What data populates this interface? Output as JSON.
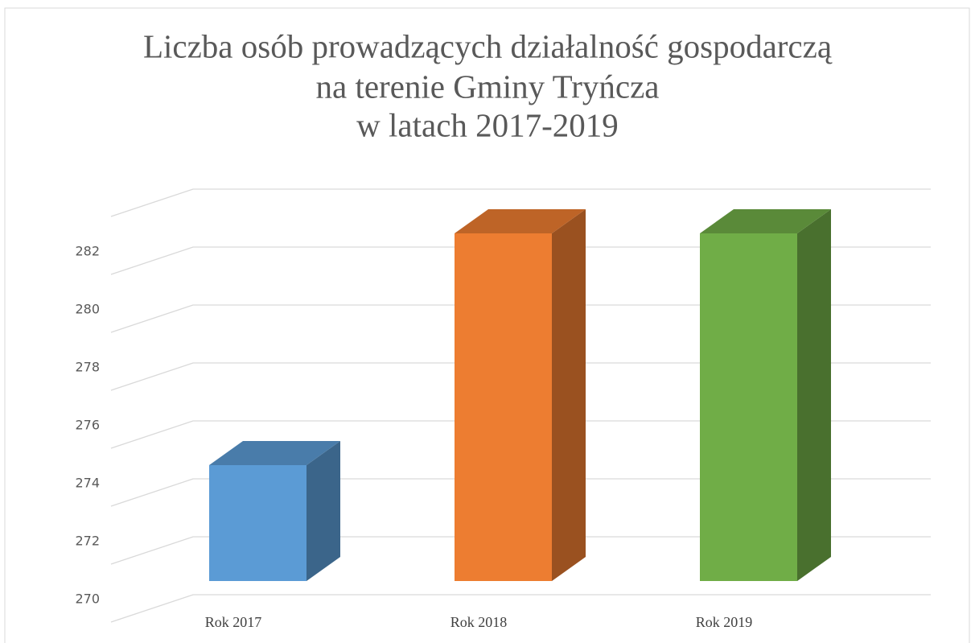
{
  "chart_data": {
    "type": "bar3d",
    "title": [
      "Liczba osób prowadzących działalność gospodarczą",
      "na terenie Gminy Tryńcza",
      "w latach 2017-2019"
    ],
    "categories": [
      "Rok 2017",
      "Rok 2018",
      "Rok 2019"
    ],
    "values": [
      274,
      282,
      282
    ],
    "colors": [
      "#5b9bd5",
      "#ed7d31",
      "#70ad47"
    ],
    "ylim": [
      270,
      284
    ],
    "yticks": [
      270,
      272,
      274,
      276,
      278,
      280,
      282
    ],
    "grid": true
  }
}
